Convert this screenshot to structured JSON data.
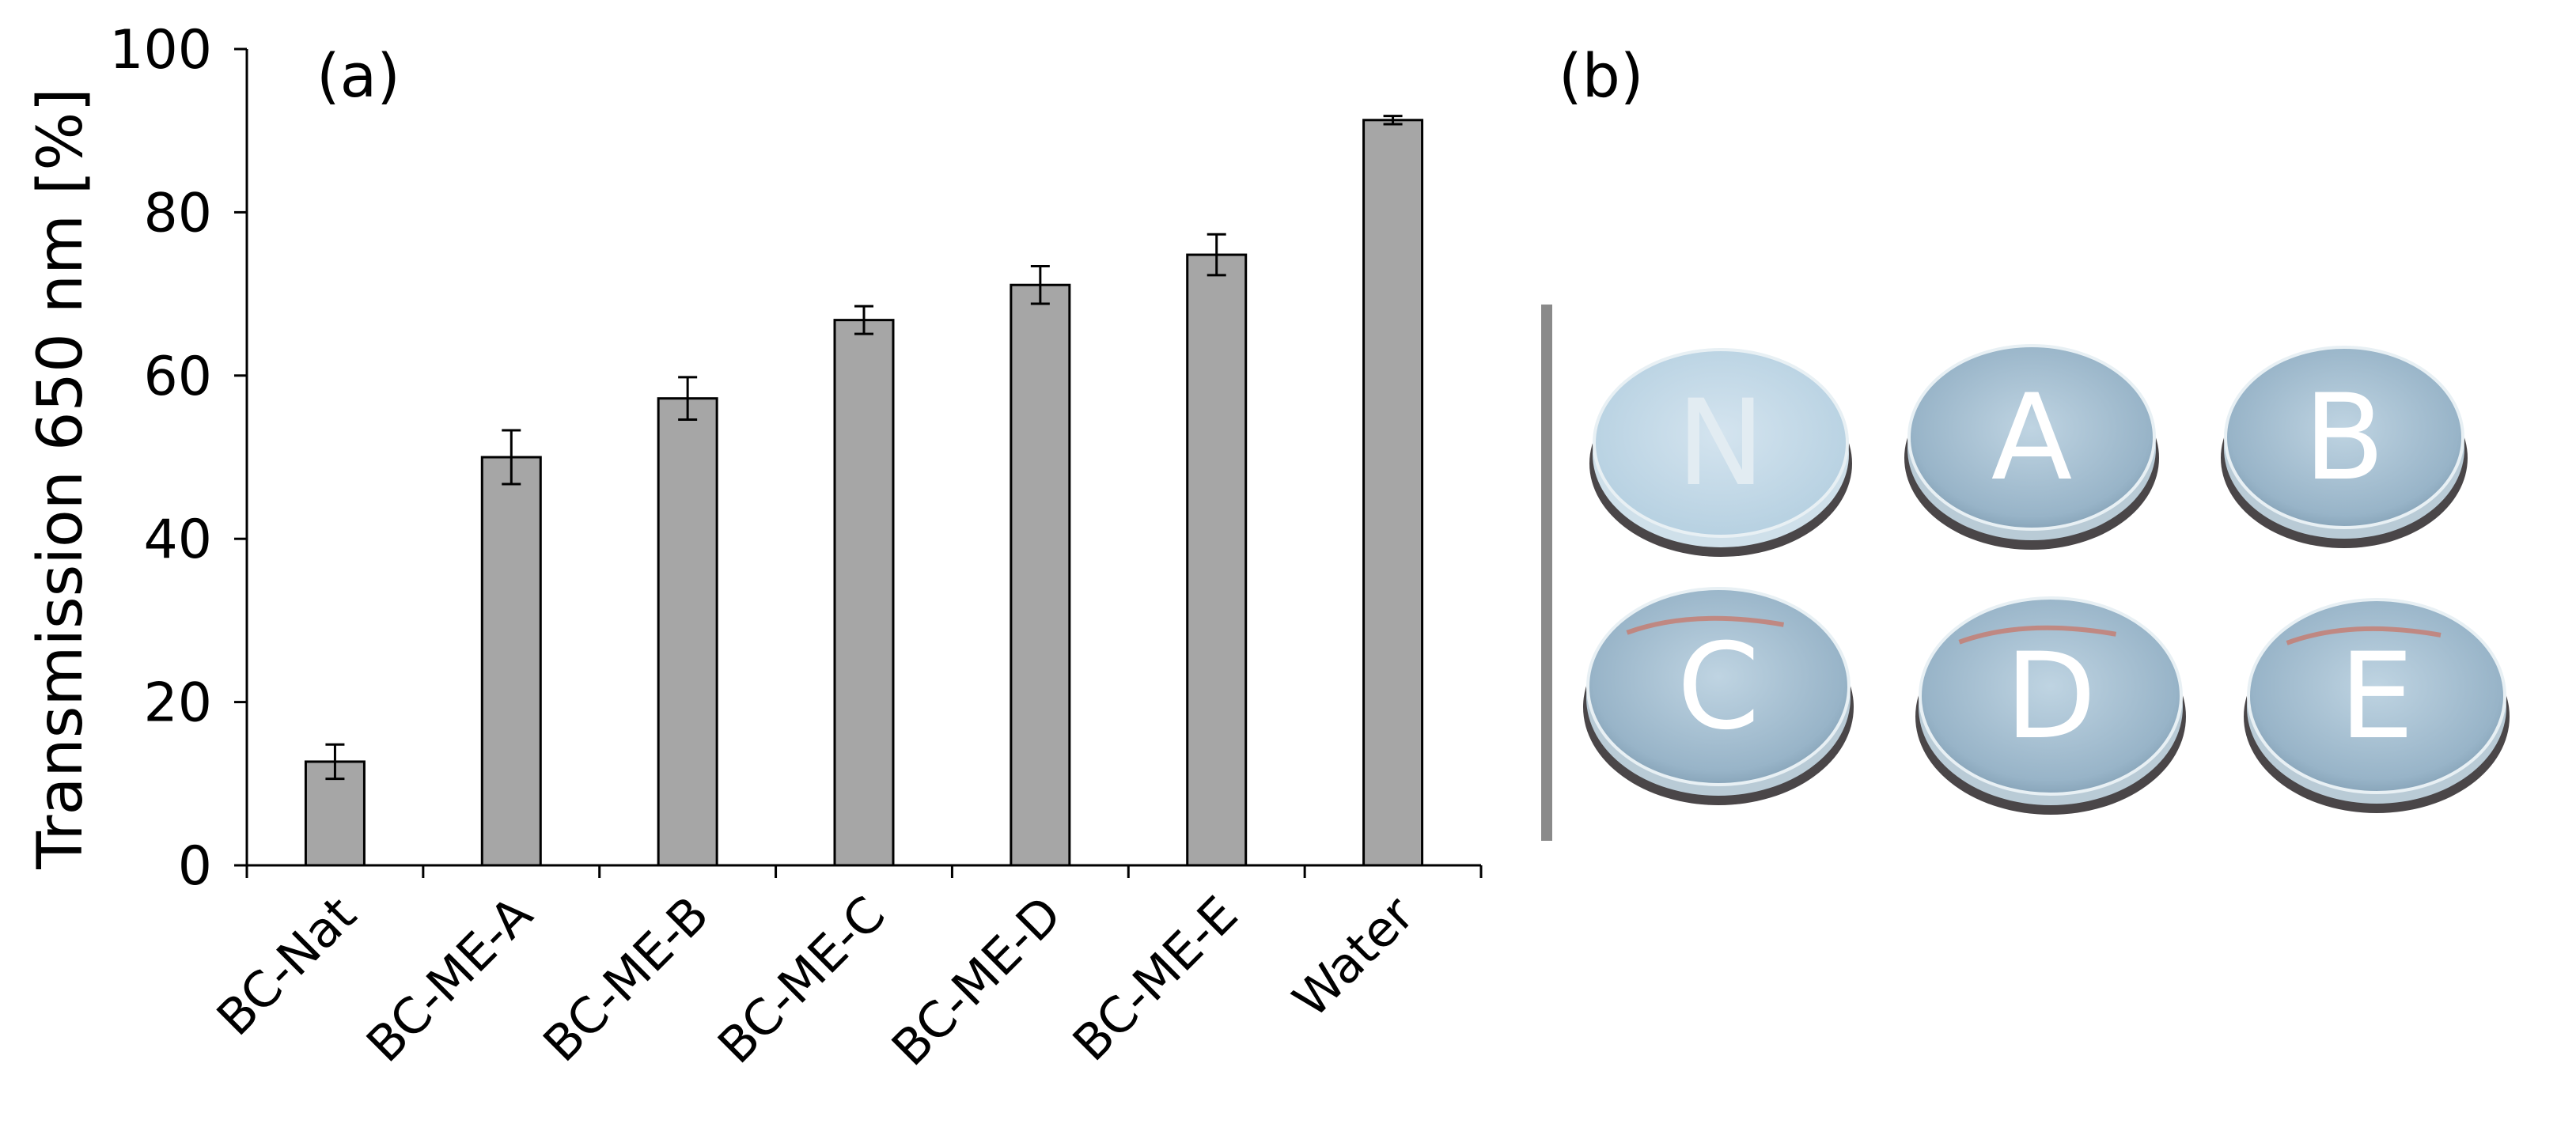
{
  "panel_a": {
    "label": "(a)"
  },
  "panel_b": {
    "label": "(b)",
    "disc_letters": [
      "N",
      "A",
      "B",
      "C",
      "D",
      "E"
    ]
  },
  "chart_data": {
    "type": "bar",
    "title": "",
    "xlabel": "",
    "ylabel": "Transmission 650 nm  [%]",
    "ylim": [
      0,
      100
    ],
    "yticks": [
      "0",
      "20",
      "40",
      "60",
      "80",
      "100"
    ],
    "categories": [
      "BC-Nat",
      "BC-ME-A",
      "BC-ME-B",
      "BC-ME-C",
      "BC-ME-D",
      "BC-ME-E",
      "Water"
    ],
    "values": [
      12.7,
      50.0,
      57.2,
      66.8,
      71.1,
      74.8,
      91.3
    ],
    "error": [
      2.1,
      3.3,
      2.6,
      1.7,
      2.3,
      2.5,
      0.5
    ],
    "bar_color": "#a6a6a6",
    "grid": false
  }
}
